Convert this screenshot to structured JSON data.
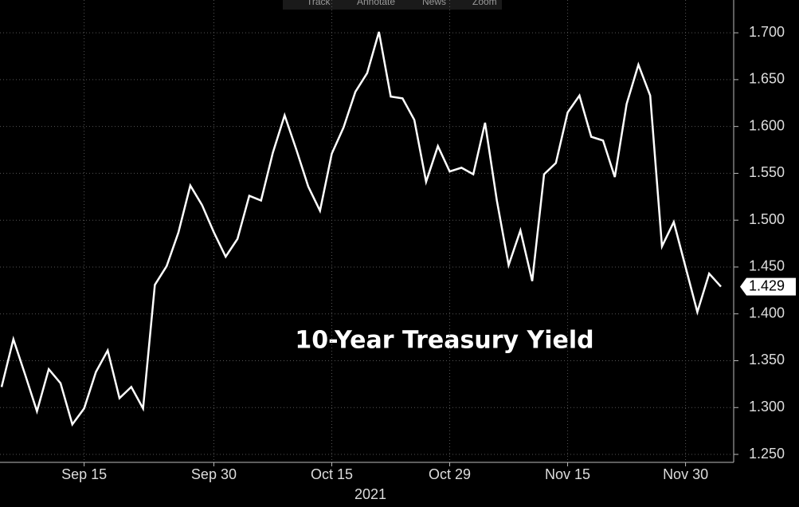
{
  "toolbar": [
    "Track",
    "Annotate",
    "News",
    "Zoom"
  ],
  "chart_data": {
    "type": "line",
    "annotation": "10-Year Treasury Yield",
    "x_label": "2021",
    "categories": [
      null,
      null,
      null,
      null,
      null,
      null,
      null,
      "Sep 15",
      null,
      null,
      null,
      null,
      null,
      null,
      null,
      null,
      null,
      null,
      "Sep 30",
      null,
      null,
      null,
      null,
      null,
      null,
      null,
      null,
      null,
      "Oct 15",
      null,
      null,
      null,
      null,
      null,
      null,
      null,
      null,
      null,
      "Oct 29",
      null,
      null,
      null,
      null,
      null,
      null,
      null,
      null,
      null,
      "Nov 15",
      null,
      null,
      null,
      null,
      null,
      null,
      null,
      null,
      null,
      "Nov 30",
      null,
      null,
      null
    ],
    "series": [
      {
        "name": "10-Year Treasury Yield",
        "color": "#ffffff",
        "values": [
          1.322,
          1.373,
          1.335,
          1.296,
          1.341,
          1.326,
          1.282,
          1.299,
          1.338,
          1.361,
          1.31,
          1.322,
          1.299,
          1.431,
          1.451,
          1.487,
          1.537,
          1.516,
          1.487,
          1.461,
          1.48,
          1.526,
          1.521,
          1.572,
          1.612,
          1.575,
          1.536,
          1.51,
          1.571,
          1.599,
          1.637,
          1.657,
          1.701,
          1.632,
          1.63,
          1.607,
          1.541,
          1.579,
          1.552,
          1.556,
          1.549,
          1.604,
          1.521,
          1.452,
          1.489,
          1.435,
          1.549,
          1.561,
          1.615,
          1.633,
          1.589,
          1.585,
          1.546,
          1.624,
          1.666,
          1.633,
          1.472,
          1.498,
          1.45,
          1.402,
          1.443,
          1.429
        ]
      }
    ],
    "ylim": [
      1.2415,
      1.735
    ],
    "yticks": [
      {
        "value": 1.25,
        "label": "1.250"
      },
      {
        "value": 1.3,
        "label": "1.300"
      },
      {
        "value": 1.35,
        "label": "1.350"
      },
      {
        "value": 1.4,
        "label": "1.400"
      },
      {
        "value": 1.45,
        "label": "1.450"
      },
      {
        "value": 1.5,
        "label": "1.500"
      },
      {
        "value": 1.55,
        "label": "1.550"
      },
      {
        "value": 1.6,
        "label": "1.600"
      },
      {
        "value": 1.65,
        "label": "1.650"
      },
      {
        "value": 1.7,
        "label": "1.700"
      }
    ],
    "grid": true
  }
}
